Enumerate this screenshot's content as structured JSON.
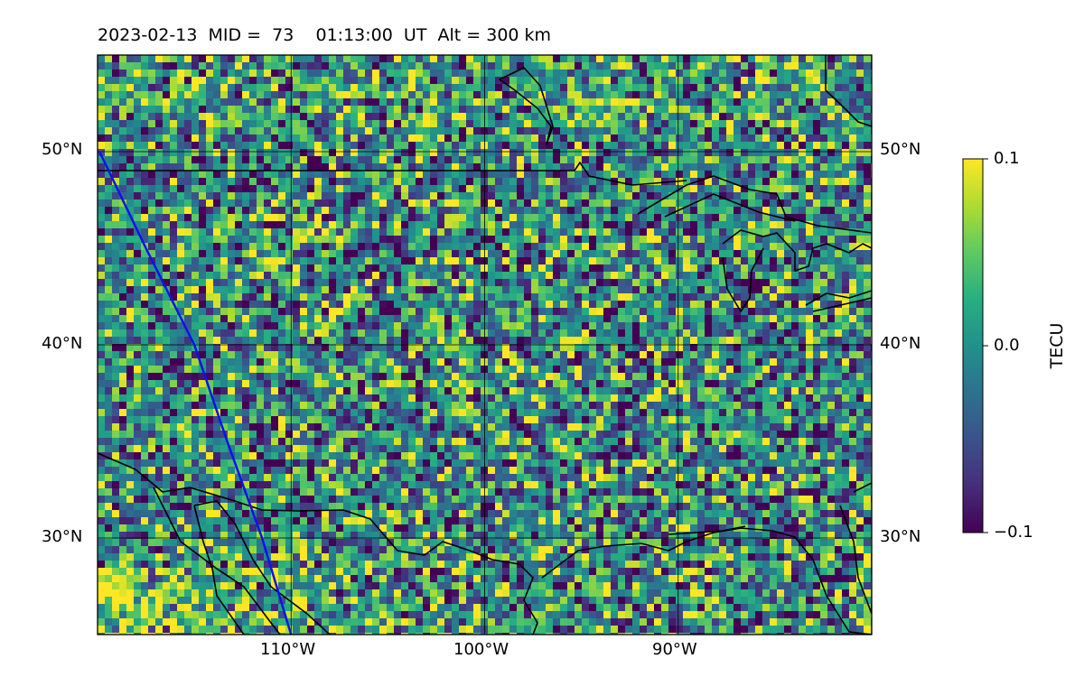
{
  "title": "2023-02-13  MID =  73    01:13:00  UT  Alt = 300 km",
  "map": {
    "lat_labels": [
      "50°N",
      "40°N",
      "30°N"
    ],
    "lon_labels": [
      "110°W",
      "100°W",
      "90°W"
    ],
    "lat_values": [
      50,
      40,
      30
    ],
    "lon_values": [
      -110,
      -100,
      -90
    ],
    "extent": {
      "lon_min": -120,
      "lon_max": -80,
      "lat_min": 25,
      "lat_max": 55
    },
    "field": "TEC perturbation",
    "trajectory_color": "#1010ee",
    "trajectory": [
      [
        -119.9,
        50
      ],
      [
        -117.5,
        45
      ],
      [
        -115,
        40
      ],
      [
        -113.3,
        35
      ],
      [
        -111.5,
        30
      ],
      [
        -110.0,
        25
      ]
    ]
  },
  "colorbar": {
    "label": "TECU",
    "ticks": [
      "0.1",
      "0.0",
      "−0.1"
    ],
    "vmin": -0.1,
    "vmax": 0.1,
    "colormap": "viridis"
  }
}
